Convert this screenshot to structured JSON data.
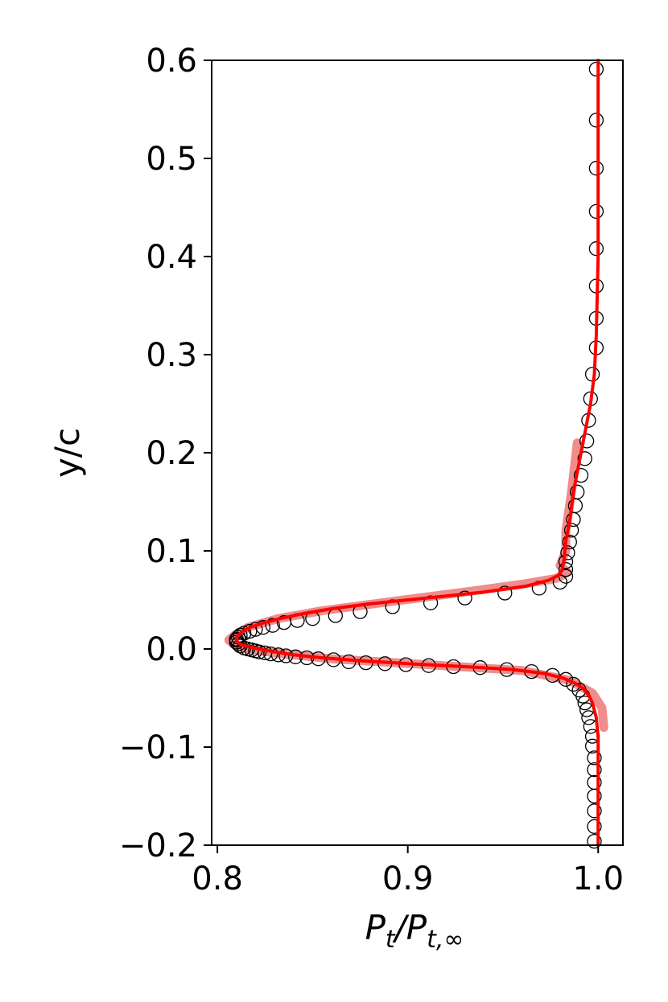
{
  "chart_data": {
    "type": "line",
    "xlabel": "P_t/P_t,∞",
    "xlabel_parts": {
      "main": "P",
      "sub1": "t",
      "sep": "/P",
      "sub2": "t,∞"
    },
    "ylabel": "y/c",
    "xlim": [
      0.797,
      1.013
    ],
    "ylim": [
      -0.2,
      0.6
    ],
    "x_ticks": [
      0.8,
      0.9,
      1.0
    ],
    "x_tick_labels": [
      "0.8",
      "0.9",
      "1.0"
    ],
    "y_ticks": [
      -0.2,
      -0.1,
      0.0,
      0.1,
      0.2,
      0.3,
      0.4,
      0.5,
      0.6
    ],
    "y_tick_labels": [
      "−0.2",
      "−0.1",
      "0.0",
      "0.1",
      "0.2",
      "0.3",
      "0.4",
      "0.5",
      "0.6"
    ],
    "grid": false,
    "colors": {
      "line": "#ff0000",
      "band": "#f08080",
      "markers": "#000000"
    },
    "series": [
      {
        "style": "markers",
        "marker": "open-circle",
        "points": [
          [
            0.999,
            0.591
          ],
          [
            0.999,
            0.539
          ],
          [
            0.999,
            0.49
          ],
          [
            0.999,
            0.446
          ],
          [
            0.999,
            0.408
          ],
          [
            0.999,
            0.37
          ],
          [
            0.999,
            0.337
          ],
          [
            0.999,
            0.307
          ],
          [
            0.997,
            0.28
          ],
          [
            0.996,
            0.255
          ],
          [
            0.995,
            0.233
          ],
          [
            0.994,
            0.212
          ],
          [
            0.993,
            0.194
          ],
          [
            0.991,
            0.177
          ],
          [
            0.989,
            0.16
          ],
          [
            0.988,
            0.146
          ],
          [
            0.987,
            0.132
          ],
          [
            0.986,
            0.121
          ],
          [
            0.985,
            0.109
          ],
          [
            0.984,
            0.098
          ],
          [
            0.983,
            0.089
          ],
          [
            0.983,
            0.081
          ],
          [
            0.983,
            0.074
          ],
          [
            0.98,
            0.068
          ],
          [
            0.969,
            0.062
          ],
          [
            0.951,
            0.057
          ],
          [
            0.93,
            0.052
          ],
          [
            0.912,
            0.047
          ],
          [
            0.892,
            0.043
          ],
          [
            0.875,
            0.038
          ],
          [
            0.862,
            0.034
          ],
          [
            0.85,
            0.031
          ],
          [
            0.842,
            0.029
          ],
          [
            0.835,
            0.027
          ],
          [
            0.829,
            0.024
          ],
          [
            0.824,
            0.022
          ],
          [
            0.82,
            0.02
          ],
          [
            0.817,
            0.018
          ],
          [
            0.814,
            0.016
          ],
          [
            0.812,
            0.014
          ],
          [
            0.811,
            0.012
          ],
          [
            0.81,
            0.01
          ],
          [
            0.81,
            0.009
          ],
          [
            0.81,
            0.007
          ],
          [
            0.811,
            0.005
          ],
          [
            0.812,
            0.003
          ],
          [
            0.814,
            0.001
          ],
          [
            0.816,
            0.0
          ],
          [
            0.818,
            -0.001
          ],
          [
            0.82,
            -0.002
          ],
          [
            0.822,
            -0.003
          ],
          [
            0.825,
            -0.004
          ],
          [
            0.828,
            -0.005
          ],
          [
            0.832,
            -0.006
          ],
          [
            0.836,
            -0.007
          ],
          [
            0.841,
            -0.008
          ],
          [
            0.847,
            -0.009
          ],
          [
            0.853,
            -0.01
          ],
          [
            0.861,
            -0.011
          ],
          [
            0.869,
            -0.013
          ],
          [
            0.878,
            -0.014
          ],
          [
            0.888,
            -0.015
          ],
          [
            0.899,
            -0.016
          ],
          [
            0.911,
            -0.017
          ],
          [
            0.924,
            -0.018
          ],
          [
            0.938,
            -0.019
          ],
          [
            0.952,
            -0.021
          ],
          [
            0.965,
            -0.023
          ],
          [
            0.976,
            -0.027
          ],
          [
            0.983,
            -0.031
          ],
          [
            0.987,
            -0.036
          ],
          [
            0.99,
            -0.042
          ],
          [
            0.992,
            -0.048
          ],
          [
            0.993,
            -0.055
          ],
          [
            0.994,
            -0.062
          ],
          [
            0.995,
            -0.07
          ],
          [
            0.996,
            -0.079
          ],
          [
            0.997,
            -0.089
          ],
          [
            0.997,
            -0.099
          ],
          [
            0.998,
            -0.111
          ],
          [
            0.998,
            -0.123
          ],
          [
            0.998,
            -0.136
          ],
          [
            0.998,
            -0.15
          ],
          [
            0.998,
            -0.165
          ],
          [
            0.998,
            -0.181
          ],
          [
            0.998,
            -0.196
          ]
        ]
      },
      {
        "style": "line",
        "points": [
          [
            1.0,
            0.6
          ],
          [
            1.0,
            0.4
          ],
          [
            0.999,
            0.32
          ],
          [
            0.998,
            0.28
          ],
          [
            0.996,
            0.25
          ],
          [
            0.993,
            0.22
          ],
          [
            0.99,
            0.19
          ],
          [
            0.987,
            0.16
          ],
          [
            0.985,
            0.13
          ],
          [
            0.983,
            0.11
          ],
          [
            0.982,
            0.09
          ],
          [
            0.981,
            0.08
          ],
          [
            0.979,
            0.075
          ],
          [
            0.974,
            0.07
          ],
          [
            0.962,
            0.064
          ],
          [
            0.94,
            0.058
          ],
          [
            0.91,
            0.052
          ],
          [
            0.88,
            0.046
          ],
          [
            0.86,
            0.041
          ],
          [
            0.845,
            0.036
          ],
          [
            0.833,
            0.031
          ],
          [
            0.823,
            0.026
          ],
          [
            0.816,
            0.021
          ],
          [
            0.812,
            0.016
          ],
          [
            0.81,
            0.012
          ],
          [
            0.81,
            0.009
          ],
          [
            0.811,
            0.006
          ],
          [
            0.813,
            0.004
          ],
          [
            0.817,
            0.002
          ],
          [
            0.822,
            0.0
          ],
          [
            0.83,
            -0.003
          ],
          [
            0.84,
            -0.006
          ],
          [
            0.855,
            -0.009
          ],
          [
            0.875,
            -0.012
          ],
          [
            0.9,
            -0.015
          ],
          [
            0.93,
            -0.018
          ],
          [
            0.955,
            -0.021
          ],
          [
            0.972,
            -0.025
          ],
          [
            0.982,
            -0.03
          ],
          [
            0.988,
            -0.035
          ],
          [
            0.992,
            -0.04
          ],
          [
            0.995,
            -0.047
          ],
          [
            0.997,
            -0.055
          ],
          [
            0.999,
            -0.07
          ],
          [
            1.0,
            -0.09
          ],
          [
            1.0,
            -0.2
          ]
        ]
      },
      {
        "style": "band",
        "points": [
          [
            0.989,
            0.21
          ],
          [
            0.986,
            0.16
          ],
          [
            0.983,
            0.12
          ],
          [
            0.983,
            0.1
          ],
          [
            0.98,
            0.085
          ],
          [
            0.984,
            0.078
          ],
          [
            0.978,
            0.072
          ],
          [
            0.96,
            0.066
          ],
          [
            0.93,
            0.058
          ],
          [
            0.89,
            0.048
          ],
          [
            0.855,
            0.039
          ],
          [
            0.832,
            0.031
          ],
          [
            0.816,
            0.022
          ],
          [
            0.809,
            0.014
          ],
          [
            0.806,
            0.009
          ],
          [
            0.809,
            0.004
          ],
          [
            0.816,
            0.0
          ],
          [
            0.83,
            -0.004
          ],
          [
            0.86,
            -0.01
          ],
          [
            0.91,
            -0.016
          ],
          [
            0.96,
            -0.022
          ],
          [
            0.985,
            -0.032
          ],
          [
            0.997,
            -0.045
          ],
          [
            1.002,
            -0.06
          ],
          [
            1.003,
            -0.08
          ]
        ]
      }
    ]
  }
}
